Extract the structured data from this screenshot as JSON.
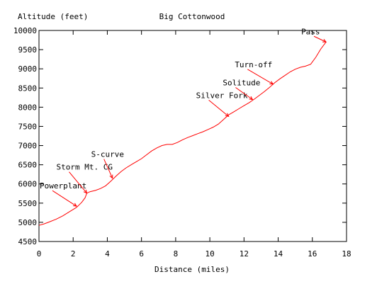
{
  "chart_data": {
    "type": "line",
    "title": "Big Cottonwood",
    "ylabel": "Altitude (feet)",
    "xlabel": "Distance (miles)",
    "xlim": [
      0,
      18
    ],
    "ylim": [
      4500,
      10000
    ],
    "x_ticks": [
      0,
      2,
      4,
      6,
      8,
      10,
      12,
      14,
      16,
      18
    ],
    "y_ticks": [
      4500,
      5000,
      5500,
      6000,
      6500,
      7000,
      7500,
      8000,
      8500,
      9000,
      9500,
      10000
    ],
    "grid": false,
    "line_color": "#ff0000",
    "series": [
      {
        "x": [
          0,
          0.3,
          0.6,
          1.0,
          1.4,
          1.8,
          2.2,
          2.5,
          2.7,
          2.8,
          3.0,
          3.3,
          3.6,
          3.9,
          4.2,
          4.5,
          4.8,
          5.1,
          5.4,
          5.7,
          6.0,
          6.3,
          6.6,
          6.9,
          7.2,
          7.5,
          7.8,
          8.1,
          8.4,
          8.7,
          9.0,
          9.3,
          9.6,
          9.9,
          10.2,
          10.5,
          10.8,
          11.1,
          11.4,
          11.7,
          12.0,
          12.3,
          12.6,
          12.9,
          13.2,
          13.5,
          13.8,
          14.1,
          14.4,
          14.7,
          15.0,
          15.3,
          15.6,
          15.9,
          16.2,
          16.5,
          16.8
        ],
        "y": [
          4920,
          4960,
          5010,
          5080,
          5170,
          5280,
          5390,
          5520,
          5640,
          5760,
          5800,
          5830,
          5880,
          5950,
          6070,
          6200,
          6320,
          6420,
          6500,
          6580,
          6660,
          6760,
          6860,
          6940,
          7000,
          7030,
          7030,
          7080,
          7150,
          7210,
          7260,
          7310,
          7360,
          7420,
          7480,
          7560,
          7680,
          7800,
          7880,
          7960,
          8040,
          8120,
          8210,
          8310,
          8410,
          8520,
          8640,
          8740,
          8830,
          8920,
          8990,
          9040,
          9070,
          9120,
          9300,
          9520,
          9700
        ]
      }
    ],
    "annotations": [
      {
        "label": "Powerplant",
        "x": 2.2,
        "y": 5420
      },
      {
        "label": "Storm Mt. CG",
        "x": 2.8,
        "y": 5760
      },
      {
        "label": "S-curve",
        "x": 4.3,
        "y": 6150
      },
      {
        "label": "Silver Fork",
        "x": 11.1,
        "y": 7760
      },
      {
        "label": "Solitude",
        "x": 12.5,
        "y": 8200
      },
      {
        "label": "Turn-off",
        "x": 13.7,
        "y": 8600
      },
      {
        "label": "Pass",
        "x": 16.8,
        "y": 9700
      }
    ]
  }
}
